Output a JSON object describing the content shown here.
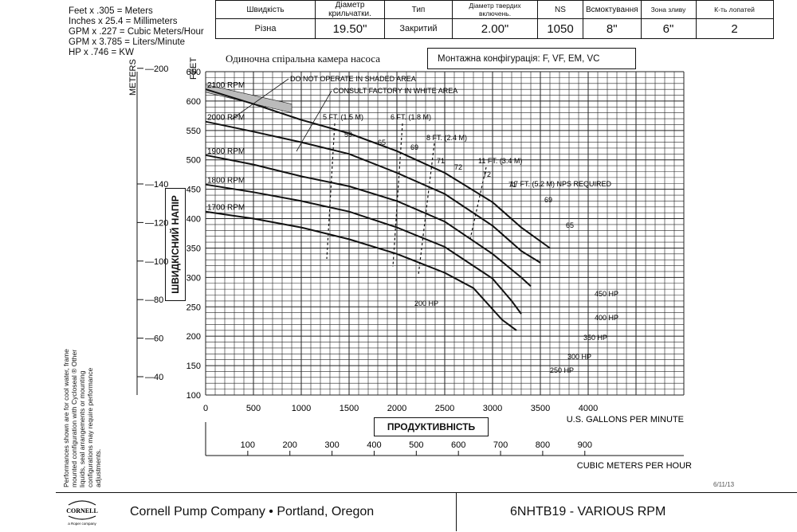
{
  "conversions": [
    "Feet x .305 = Meters",
    "Inches x 25.4 = Millimeters",
    "GPM x .227 = Cubic Meters/Hour",
    "GPM x 3.785 = Liters/Minute",
    "HP x .746 = KW"
  ],
  "spec_table": {
    "headers": [
      "Швидкість",
      "Діаметр крильчатки.",
      "Тип",
      "Діаметр твердих включень.",
      "NS",
      "Всмоктування",
      "Зона зливу",
      "К-ть лопатей"
    ],
    "values": [
      "Різна",
      "19.50\"",
      "Закритий",
      "2.00\"",
      "1050",
      "8\"",
      "6\"",
      "2"
    ]
  },
  "subtitle": "Одиночна спіральна камера насоса",
  "mounting": "Монтажна конфігурація: F, VF, EM, VC",
  "notes": {
    "shaded": "DO NOT OPERATE IN SHADED AREA",
    "white": "CONSULT FACTORY IN WHITE AREA"
  },
  "axis_labels": {
    "meters": "METERS",
    "feet": "FEET",
    "head": "ШВИДКІСНИЙ НАПІР",
    "capacity": "ПРОДУКТИВНІСТЬ",
    "gpm": "U.S. GALLONS PER MINUTE",
    "m3h": "CUBIC METERS PER HOUR"
  },
  "side_note": "Performances shown are for cool water, frame mounted configuration with Cycloseal ® Other liquids, seal arrangements or mounting configurations may require performance adjustments.",
  "footer": {
    "logo": "CORNELL",
    "logo_sub": "a Roper company",
    "company": "Cornell Pump Company  •    Portland, Oregon",
    "model": "6NHTB19 - VARIOUS RPM",
    "date_code": "6/11/13"
  },
  "chart_data": {
    "type": "line",
    "xlabel": "U.S. GALLONS PER MINUTE",
    "ylabel": "FEET",
    "xlim": [
      0,
      5000
    ],
    "ylim": [
      100,
      650
    ],
    "x_ticks": [
      0,
      500,
      1000,
      1500,
      2000,
      2500,
      3000,
      3500,
      4000
    ],
    "y_ticks": [
      100,
      150,
      200,
      250,
      300,
      350,
      400,
      450,
      500,
      550,
      600,
      650
    ],
    "meters_ticks": [
      40,
      60,
      80,
      100,
      120,
      140,
      200
    ],
    "m3h_ticks": [
      100,
      200,
      300,
      400,
      500,
      600,
      700,
      800,
      900
    ],
    "series": [
      {
        "name": "2100 RPM",
        "x": [
          0,
          500,
          1000,
          1500,
          2000,
          2500,
          3000,
          3300,
          3600
        ],
        "y": [
          620,
          595,
          568,
          545,
          515,
          478,
          428,
          385,
          350
        ]
      },
      {
        "name": "2000 RPM",
        "x": [
          0,
          500,
          1000,
          1500,
          2000,
          2500,
          3000,
          3300,
          3500
        ],
        "y": [
          565,
          548,
          530,
          510,
          478,
          442,
          388,
          345,
          325
        ]
      },
      {
        "name": "1900 RPM",
        "x": [
          0,
          500,
          1000,
          1500,
          2000,
          2500,
          3000,
          3300,
          3400
        ],
        "y": [
          508,
          492,
          472,
          455,
          430,
          395,
          340,
          300,
          285
        ]
      },
      {
        "name": "1800 RPM",
        "x": [
          0,
          500,
          1000,
          1500,
          2000,
          2500,
          3000,
          3200,
          3300
        ],
        "y": [
          458,
          445,
          430,
          412,
          385,
          352,
          298,
          260,
          238
        ]
      },
      {
        "name": "1700 RPM",
        "x": [
          0,
          500,
          1000,
          1500,
          2000,
          2500,
          2800,
          3100,
          3250
        ],
        "y": [
          412,
          400,
          385,
          365,
          340,
          308,
          282,
          228,
          210
        ]
      }
    ],
    "efficiency_labels": [
      "59",
      "65",
      "69",
      "71",
      "72",
      "72",
      "71",
      "69",
      "65"
    ],
    "npsh_labels": [
      "5 FT. (1.5 M)",
      "6 FT. (1.8 M)",
      "8 FT. (2.4 M)",
      "11 FT. (3.4 M)",
      "17 FT. (5.2 M) NPS REQUIRED"
    ],
    "hp_labels": [
      "450 HP",
      "400 HP",
      "350 HP",
      "300 HP",
      "250 HP",
      "200 HP"
    ]
  }
}
